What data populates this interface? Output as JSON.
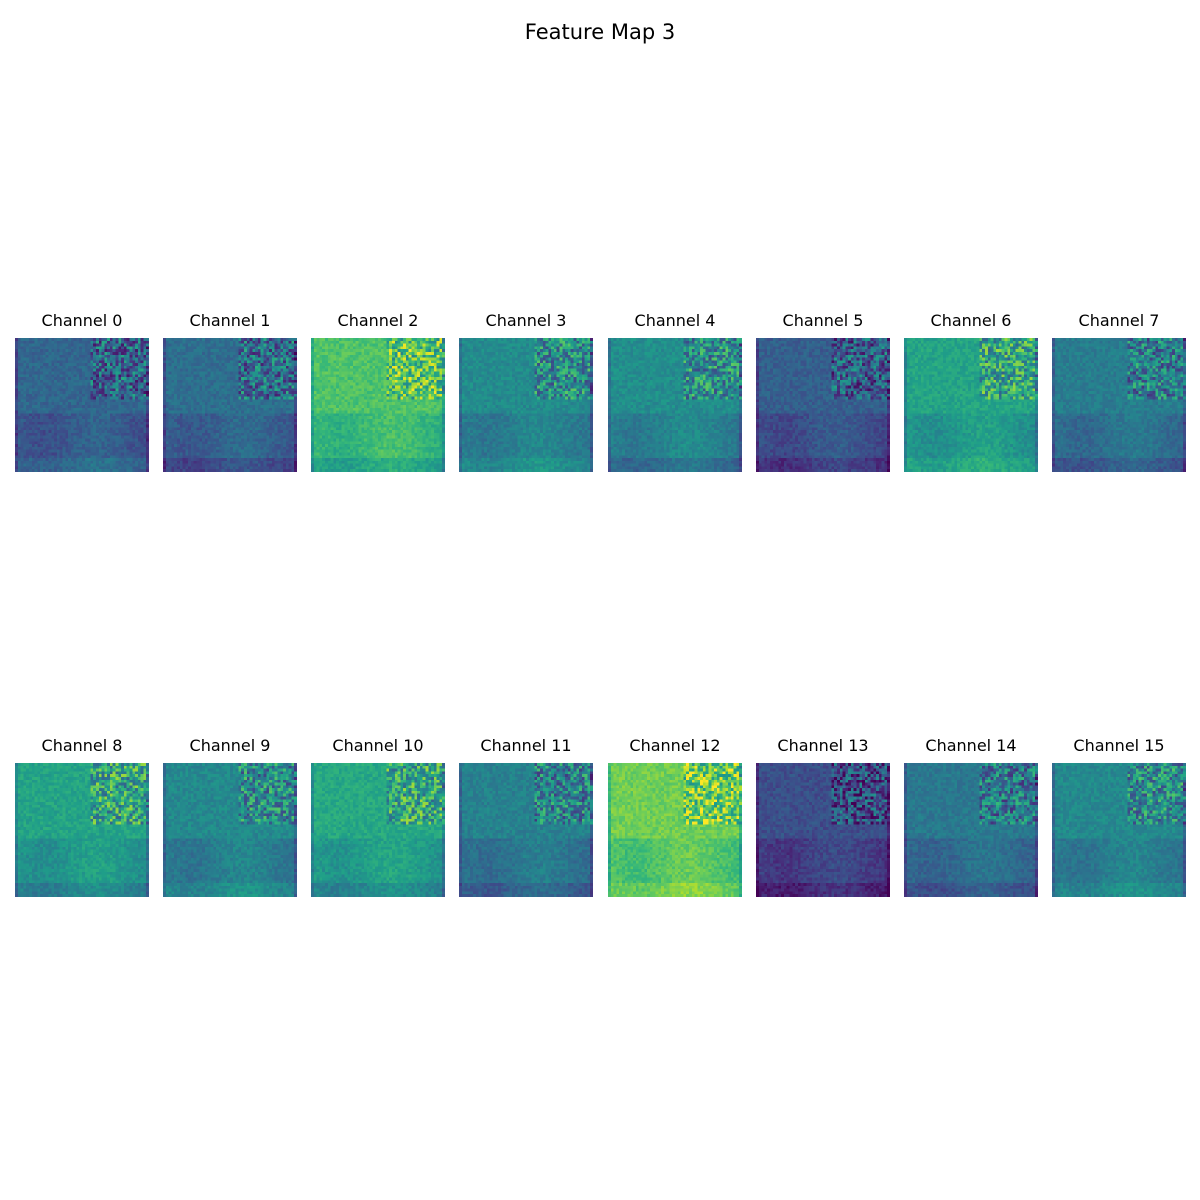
{
  "title": "Feature Map 3",
  "chart_data": {
    "type": "heatmap",
    "title": "Feature Map 3",
    "colormap": "viridis",
    "layout": {
      "rows": 2,
      "cols": 8,
      "axes": "off"
    },
    "channels": [
      {
        "label": "Channel 0",
        "mean_level": 0.33
      },
      {
        "label": "Channel 1",
        "mean_level": 0.36
      },
      {
        "label": "Channel 2",
        "mean_level": 0.72
      },
      {
        "label": "Channel 3",
        "mean_level": 0.48
      },
      {
        "label": "Channel 4",
        "mean_level": 0.49
      },
      {
        "label": "Channel 5",
        "mean_level": 0.3
      },
      {
        "label": "Channel 6",
        "mean_level": 0.58
      },
      {
        "label": "Channel 7",
        "mean_level": 0.42
      },
      {
        "label": "Channel 8",
        "mean_level": 0.58
      },
      {
        "label": "Channel 9",
        "mean_level": 0.47
      },
      {
        "label": "Channel 10",
        "mean_level": 0.6
      },
      {
        "label": "Channel 11",
        "mean_level": 0.44
      },
      {
        "label": "Channel 12",
        "mean_level": 0.78
      },
      {
        "label": "Channel 13",
        "mean_level": 0.24
      },
      {
        "label": "Channel 14",
        "mean_level": 0.4
      },
      {
        "label": "Channel 15",
        "mean_level": 0.47
      }
    ]
  }
}
